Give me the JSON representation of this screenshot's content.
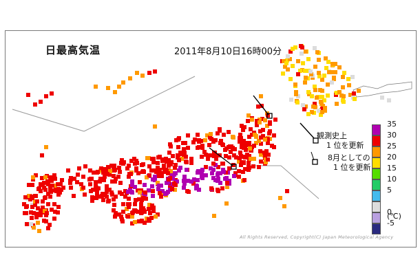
{
  "map": {
    "title": "日最高気温",
    "datetime": "2011年8月10日16時00分",
    "copyright": "All Rights Reserved, Copyright(C) Japan Meteorological Agency"
  },
  "legend": {
    "unit": "(℃)",
    "levels": [
      {
        "label": "35",
        "color": "#b000b0"
      },
      {
        "label": "30",
        "color": "#ee0000"
      },
      {
        "label": "25",
        "color": "#ff9900"
      },
      {
        "label": "20",
        "color": "#ffdd00"
      },
      {
        "label": "15",
        "color": "#55dd00"
      },
      {
        "label": "10",
        "color": "#22cc66"
      },
      {
        "label": "5",
        "color": "#44bbee"
      },
      {
        "label": "",
        "color": "#dcdcdc"
      },
      {
        "label": "0",
        "color": "#b9a0e0"
      },
      {
        "label": "-5",
        "color": "#2a2a80"
      }
    ]
  },
  "notes": {
    "record_all_time": {
      "line1": "観測史上",
      "line2": "1 位を更新"
    },
    "record_august": {
      "line1": "8月としての",
      "line2": "1 位を更新"
    }
  }
}
